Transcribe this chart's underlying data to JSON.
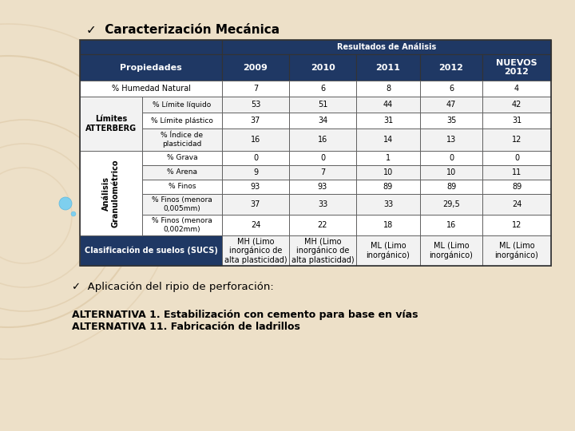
{
  "title": "✓  Caracterización Mecánica",
  "subtitle1": "✓  Aplicación del ripio de perforación:",
  "subtitle2": "ALTERNATIVA 1. Estabilización con cemento para base en vías\nALTERNATIVA 11. Fabricación de ladrillos",
  "header_top": "Resultados de Análisis",
  "header_cols": [
    "2009",
    "2010",
    "2011",
    "2012",
    "NUEVOS\n2012"
  ],
  "prop_header": "Propiedades",
  "bg_color": "#ede0c8",
  "header_dark": "#1f3864",
  "row_white": "#ffffff",
  "row_light": "#f2f2f2",
  "rows": [
    {
      "prop1": "% Humedad Natural",
      "prop2": "",
      "vals": [
        "7",
        "6",
        "8",
        "6",
        "4"
      ],
      "span": true
    },
    {
      "prop1": "Límites\nATTERBERG",
      "prop2": "% Límite líquido",
      "vals": [
        "53",
        "51",
        "44",
        "47",
        "42"
      ]
    },
    {
      "prop1": "",
      "prop2": "% Límite plástico",
      "vals": [
        "37",
        "34",
        "31",
        "35",
        "31"
      ]
    },
    {
      "prop1": "",
      "prop2": "% Índice de\nplasticidad",
      "vals": [
        "16",
        "16",
        "14",
        "13",
        "12"
      ]
    },
    {
      "prop1": "Análisis\nGranulométrico",
      "prop2": "% Grava",
      "vals": [
        "0",
        "0",
        "1",
        "0",
        "0"
      ]
    },
    {
      "prop1": "",
      "prop2": "% Arena",
      "vals": [
        "9",
        "7",
        "10",
        "10",
        "11"
      ]
    },
    {
      "prop1": "",
      "prop2": "% Finos",
      "vals": [
        "93",
        "93",
        "89",
        "89",
        "89"
      ]
    },
    {
      "prop1": "",
      "prop2": "% Finos (menora\n0,005mm)",
      "vals": [
        "37",
        "33",
        "33",
        "29,5",
        "24"
      ]
    },
    {
      "prop1": "",
      "prop2": "% Finos (menora\n0,002mm)",
      "vals": [
        "24",
        "22",
        "18",
        "16",
        "12"
      ]
    },
    {
      "prop1": "Clasificación de suelos (SUCS)",
      "prop2": "",
      "vals": [
        "MH (Limo\ninorgánico de\nalta plasticidad)",
        "MH (Limo\ninorgánico de\nalta plasticidad)",
        "ML (Limo\ninorgánico)",
        "ML (Limo\ninorgánico)",
        "ML (Limo\ninorgánico)"
      ],
      "span": true
    }
  ],
  "circle_color": "#d4b896",
  "circle_small_color": "#87ceeb"
}
